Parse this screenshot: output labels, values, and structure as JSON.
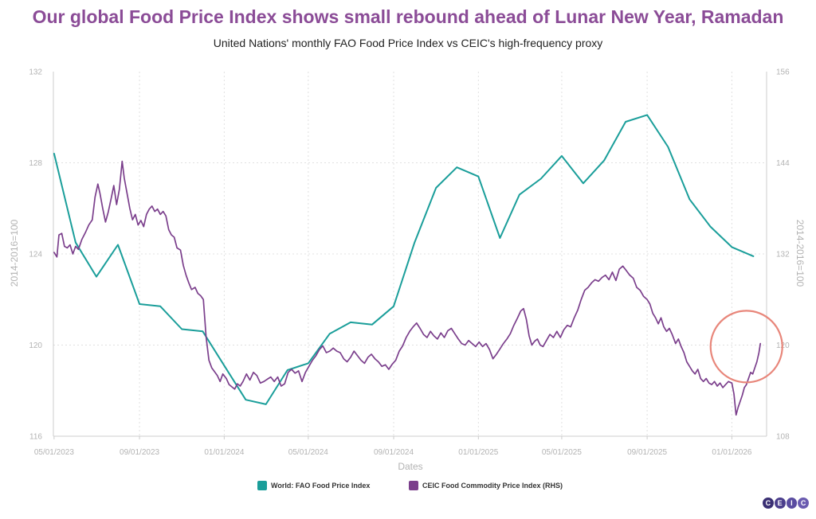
{
  "title": "Our global Food Price Index shows small rebound ahead of Lunar New Year, Ramadan",
  "subtitle": "United Nations' monthly FAO Food Price Index vs CEIC's high-frequency proxy",
  "logo": {
    "letters": [
      "C",
      "E",
      "I",
      "C"
    ]
  },
  "chart_data": {
    "type": "line",
    "xlabel": "Dates",
    "ylabel_left": "2014-2016=100",
    "ylabel_right": "2014-2016=100",
    "x_range": [
      "2023-04-30",
      "2026-02-20"
    ],
    "x_ticks": [
      "05/01/2023",
      "09/01/2023",
      "01/01/2024",
      "05/01/2024",
      "09/01/2024",
      "01/01/2025",
      "05/01/2025",
      "09/01/2025",
      "01/01/2026"
    ],
    "y_left": {
      "min": 116,
      "max": 132,
      "ticks": [
        "116",
        "120",
        "124",
        "128",
        "132"
      ]
    },
    "y_right": {
      "min": 108,
      "max": 156,
      "ticks": [
        "108",
        "120",
        "132",
        "144",
        "156"
      ]
    },
    "grid": true,
    "legend_position": "bottom",
    "annotation": {
      "type": "circle",
      "color": "#e8867a",
      "x": "2026-01-22",
      "y_right": 119.8
    },
    "series": [
      {
        "name": "World: FAO Food Price Index",
        "color": "#1a9e9a",
        "axis": "left",
        "points": [
          [
            "2023-05-01",
            128.4
          ],
          [
            "2023-06-01",
            124.5
          ],
          [
            "2023-07-01",
            123.0
          ],
          [
            "2023-08-01",
            124.4
          ],
          [
            "2023-09-01",
            121.8
          ],
          [
            "2023-10-01",
            121.7
          ],
          [
            "2023-11-01",
            120.7
          ],
          [
            "2023-12-01",
            120.6
          ],
          [
            "2024-01-01",
            119.1
          ],
          [
            "2024-02-01",
            117.6
          ],
          [
            "2024-03-01",
            117.4
          ],
          [
            "2024-04-01",
            118.9
          ],
          [
            "2024-05-01",
            119.2
          ],
          [
            "2024-06-01",
            120.5
          ],
          [
            "2024-07-01",
            121.0
          ],
          [
            "2024-08-01",
            120.9
          ],
          [
            "2024-09-01",
            121.7
          ],
          [
            "2024-10-01",
            124.5
          ],
          [
            "2024-11-01",
            126.9
          ],
          [
            "2024-12-01",
            127.8
          ],
          [
            "2025-01-01",
            127.4
          ],
          [
            "2025-02-01",
            124.7
          ],
          [
            "2025-03-01",
            126.6
          ],
          [
            "2025-04-01",
            127.3
          ],
          [
            "2025-05-01",
            128.3
          ],
          [
            "2025-06-01",
            127.1
          ],
          [
            "2025-07-01",
            128.1
          ],
          [
            "2025-08-01",
            129.8
          ],
          [
            "2025-09-01",
            130.1
          ],
          [
            "2025-10-01",
            128.7
          ],
          [
            "2025-11-01",
            126.4
          ],
          [
            "2025-12-01",
            125.2
          ],
          [
            "2026-01-01",
            124.3
          ],
          [
            "2026-02-01",
            123.9
          ]
        ]
      },
      {
        "name": "CEIC Food Commodity Price Index (RHS)",
        "color": "#7b3f8c",
        "axis": "right",
        "points": [
          [
            "2023-05-01",
            132.2
          ],
          [
            "2023-05-05",
            131.6
          ],
          [
            "2023-05-08",
            134.5
          ],
          [
            "2023-05-12",
            134.7
          ],
          [
            "2023-05-16",
            133.0
          ],
          [
            "2023-05-20",
            132.8
          ],
          [
            "2023-05-24",
            133.2
          ],
          [
            "2023-05-28",
            132.0
          ],
          [
            "2023-06-01",
            133.0
          ],
          [
            "2023-06-05",
            132.6
          ],
          [
            "2023-06-10",
            133.9
          ],
          [
            "2023-06-15",
            134.8
          ],
          [
            "2023-06-20",
            135.8
          ],
          [
            "2023-06-25",
            136.5
          ],
          [
            "2023-06-29",
            139.5
          ],
          [
            "2023-07-03",
            141.2
          ],
          [
            "2023-07-06",
            140.0
          ],
          [
            "2023-07-10",
            138.0
          ],
          [
            "2023-07-14",
            136.2
          ],
          [
            "2023-07-18",
            137.5
          ],
          [
            "2023-07-22",
            139.2
          ],
          [
            "2023-07-26",
            141.0
          ],
          [
            "2023-07-30",
            138.5
          ],
          [
            "2023-08-03",
            140.5
          ],
          [
            "2023-08-07",
            144.2
          ],
          [
            "2023-08-10",
            142.0
          ],
          [
            "2023-08-14",
            140.0
          ],
          [
            "2023-08-18",
            138.0
          ],
          [
            "2023-08-22",
            136.5
          ],
          [
            "2023-08-26",
            137.2
          ],
          [
            "2023-08-30",
            135.8
          ],
          [
            "2023-09-03",
            136.4
          ],
          [
            "2023-09-07",
            135.6
          ],
          [
            "2023-09-11",
            137.2
          ],
          [
            "2023-09-15",
            137.9
          ],
          [
            "2023-09-19",
            138.3
          ],
          [
            "2023-09-23",
            137.6
          ],
          [
            "2023-09-27",
            137.9
          ],
          [
            "2023-10-01",
            137.2
          ],
          [
            "2023-10-05",
            137.6
          ],
          [
            "2023-10-09",
            137.0
          ],
          [
            "2023-10-13",
            135.2
          ],
          [
            "2023-10-17",
            134.5
          ],
          [
            "2023-10-21",
            134.2
          ],
          [
            "2023-10-25",
            132.8
          ],
          [
            "2023-10-30",
            132.5
          ],
          [
            "2023-11-03",
            130.5
          ],
          [
            "2023-11-07",
            129.2
          ],
          [
            "2023-11-11",
            128.2
          ],
          [
            "2023-11-15",
            127.3
          ],
          [
            "2023-11-20",
            127.6
          ],
          [
            "2023-11-24",
            126.8
          ],
          [
            "2023-11-28",
            126.5
          ],
          [
            "2023-12-02",
            126.0
          ],
          [
            "2023-12-06",
            121.0
          ],
          [
            "2023-12-10",
            118.0
          ],
          [
            "2023-12-14",
            117.0
          ],
          [
            "2023-12-18",
            116.5
          ],
          [
            "2023-12-22",
            116.0
          ],
          [
            "2023-12-26",
            115.2
          ],
          [
            "2023-12-30",
            116.2
          ],
          [
            "2024-01-04",
            115.6
          ],
          [
            "2024-01-08",
            114.8
          ],
          [
            "2024-01-12",
            114.5
          ],
          [
            "2024-01-16",
            114.2
          ],
          [
            "2024-01-20",
            114.9
          ],
          [
            "2024-01-24",
            114.6
          ],
          [
            "2024-01-28",
            115.2
          ],
          [
            "2024-02-02",
            116.2
          ],
          [
            "2024-02-07",
            115.4
          ],
          [
            "2024-02-12",
            116.4
          ],
          [
            "2024-02-17",
            116.0
          ],
          [
            "2024-02-22",
            115.0
          ],
          [
            "2024-02-27",
            115.2
          ],
          [
            "2024-03-03",
            115.5
          ],
          [
            "2024-03-08",
            115.8
          ],
          [
            "2024-03-13",
            115.2
          ],
          [
            "2024-03-18",
            115.8
          ],
          [
            "2024-03-23",
            114.6
          ],
          [
            "2024-03-28",
            114.9
          ],
          [
            "2024-04-02",
            116.4
          ],
          [
            "2024-04-07",
            116.8
          ],
          [
            "2024-04-12",
            116.3
          ],
          [
            "2024-04-17",
            116.6
          ],
          [
            "2024-04-22",
            115.2
          ],
          [
            "2024-04-27",
            116.4
          ],
          [
            "2024-05-02",
            117.2
          ],
          [
            "2024-05-07",
            118.0
          ],
          [
            "2024-05-12",
            118.6
          ],
          [
            "2024-05-17",
            119.4
          ],
          [
            "2024-05-22",
            119.9
          ],
          [
            "2024-05-27",
            119.0
          ],
          [
            "2024-06-01",
            119.2
          ],
          [
            "2024-06-06",
            119.6
          ],
          [
            "2024-06-11",
            119.2
          ],
          [
            "2024-06-16",
            119.0
          ],
          [
            "2024-06-21",
            118.2
          ],
          [
            "2024-06-26",
            117.8
          ],
          [
            "2024-07-01",
            118.4
          ],
          [
            "2024-07-06",
            119.2
          ],
          [
            "2024-07-11",
            118.6
          ],
          [
            "2024-07-16",
            118.0
          ],
          [
            "2024-07-21",
            117.6
          ],
          [
            "2024-07-26",
            118.4
          ],
          [
            "2024-07-31",
            118.8
          ],
          [
            "2024-08-05",
            118.2
          ],
          [
            "2024-08-10",
            117.8
          ],
          [
            "2024-08-15",
            117.2
          ],
          [
            "2024-08-20",
            117.4
          ],
          [
            "2024-08-25",
            116.8
          ],
          [
            "2024-08-30",
            117.5
          ],
          [
            "2024-09-04",
            118.0
          ],
          [
            "2024-09-09",
            119.2
          ],
          [
            "2024-09-14",
            119.9
          ],
          [
            "2024-09-19",
            121.0
          ],
          [
            "2024-09-24",
            121.8
          ],
          [
            "2024-09-29",
            122.4
          ],
          [
            "2024-10-04",
            122.9
          ],
          [
            "2024-10-09",
            122.2
          ],
          [
            "2024-10-14",
            121.4
          ],
          [
            "2024-10-19",
            121.0
          ],
          [
            "2024-10-24",
            121.8
          ],
          [
            "2024-10-29",
            121.2
          ],
          [
            "2024-11-03",
            120.8
          ],
          [
            "2024-11-08",
            121.6
          ],
          [
            "2024-11-13",
            121.0
          ],
          [
            "2024-11-18",
            121.9
          ],
          [
            "2024-11-23",
            122.2
          ],
          [
            "2024-11-28",
            121.5
          ],
          [
            "2024-12-03",
            120.8
          ],
          [
            "2024-12-08",
            120.2
          ],
          [
            "2024-12-13",
            120.0
          ],
          [
            "2024-12-18",
            120.6
          ],
          [
            "2024-12-23",
            120.2
          ],
          [
            "2024-12-28",
            119.8
          ],
          [
            "2025-01-02",
            120.4
          ],
          [
            "2025-01-07",
            119.8
          ],
          [
            "2025-01-12",
            120.2
          ],
          [
            "2025-01-17",
            119.4
          ],
          [
            "2025-01-22",
            118.2
          ],
          [
            "2025-01-27",
            118.8
          ],
          [
            "2025-02-01",
            119.5
          ],
          [
            "2025-02-06",
            120.2
          ],
          [
            "2025-02-11",
            120.8
          ],
          [
            "2025-02-16",
            121.5
          ],
          [
            "2025-02-21",
            122.6
          ],
          [
            "2025-02-26",
            123.5
          ],
          [
            "2025-03-03",
            124.5
          ],
          [
            "2025-03-07",
            124.8
          ],
          [
            "2025-03-11",
            123.4
          ],
          [
            "2025-03-15",
            121.2
          ],
          [
            "2025-03-19",
            120.0
          ],
          [
            "2025-03-23",
            120.5
          ],
          [
            "2025-03-27",
            120.8
          ],
          [
            "2025-03-31",
            120.0
          ],
          [
            "2025-04-04",
            119.8
          ],
          [
            "2025-04-09",
            120.6
          ],
          [
            "2025-04-14",
            121.4
          ],
          [
            "2025-04-19",
            121.0
          ],
          [
            "2025-04-24",
            121.8
          ],
          [
            "2025-04-29",
            121.0
          ],
          [
            "2025-05-04",
            122.0
          ],
          [
            "2025-05-09",
            122.6
          ],
          [
            "2025-05-14",
            122.4
          ],
          [
            "2025-05-19",
            123.6
          ],
          [
            "2025-05-24",
            124.6
          ],
          [
            "2025-05-29",
            126.0
          ],
          [
            "2025-06-03",
            127.2
          ],
          [
            "2025-06-08",
            127.6
          ],
          [
            "2025-06-13",
            128.2
          ],
          [
            "2025-06-18",
            128.6
          ],
          [
            "2025-06-23",
            128.4
          ],
          [
            "2025-06-28",
            128.9
          ],
          [
            "2025-07-03",
            129.2
          ],
          [
            "2025-07-08",
            128.6
          ],
          [
            "2025-07-13",
            129.6
          ],
          [
            "2025-07-18",
            128.5
          ],
          [
            "2025-07-23",
            130.0
          ],
          [
            "2025-07-28",
            130.4
          ],
          [
            "2025-08-02",
            129.8
          ],
          [
            "2025-08-07",
            129.2
          ],
          [
            "2025-08-12",
            128.8
          ],
          [
            "2025-08-17",
            127.6
          ],
          [
            "2025-08-22",
            127.2
          ],
          [
            "2025-08-27",
            126.4
          ],
          [
            "2025-09-01",
            126.0
          ],
          [
            "2025-09-05",
            125.4
          ],
          [
            "2025-09-09",
            124.2
          ],
          [
            "2025-09-13",
            123.6
          ],
          [
            "2025-09-17",
            122.8
          ],
          [
            "2025-09-21",
            123.6
          ],
          [
            "2025-09-25",
            122.4
          ],
          [
            "2025-09-29",
            121.8
          ],
          [
            "2025-10-03",
            122.2
          ],
          [
            "2025-10-07",
            121.4
          ],
          [
            "2025-10-12",
            120.2
          ],
          [
            "2025-10-16",
            120.8
          ],
          [
            "2025-10-20",
            119.8
          ],
          [
            "2025-10-24",
            119.0
          ],
          [
            "2025-10-28",
            117.8
          ],
          [
            "2025-11-01",
            117.2
          ],
          [
            "2025-11-05",
            116.6
          ],
          [
            "2025-11-09",
            116.2
          ],
          [
            "2025-11-13",
            116.8
          ],
          [
            "2025-11-17",
            115.6
          ],
          [
            "2025-11-21",
            115.2
          ],
          [
            "2025-11-25",
            115.6
          ],
          [
            "2025-11-29",
            115.0
          ],
          [
            "2025-12-03",
            114.8
          ],
          [
            "2025-12-07",
            115.2
          ],
          [
            "2025-12-11",
            114.6
          ],
          [
            "2025-12-15",
            115.0
          ],
          [
            "2025-12-19",
            114.4
          ],
          [
            "2025-12-23",
            114.8
          ],
          [
            "2025-12-27",
            115.2
          ],
          [
            "2026-01-01",
            115.0
          ],
          [
            "2026-01-04",
            113.6
          ],
          [
            "2026-01-07",
            110.8
          ],
          [
            "2026-01-10",
            111.8
          ],
          [
            "2026-01-13",
            112.6
          ],
          [
            "2026-01-16",
            113.4
          ],
          [
            "2026-01-19",
            114.4
          ],
          [
            "2026-01-22",
            114.8
          ],
          [
            "2026-01-25",
            115.6
          ],
          [
            "2026-01-28",
            116.4
          ],
          [
            "2026-01-31",
            116.2
          ],
          [
            "2026-02-03",
            117.0
          ],
          [
            "2026-02-06",
            117.8
          ],
          [
            "2026-02-09",
            119.0
          ],
          [
            "2026-02-11",
            120.2
          ]
        ]
      }
    ]
  }
}
